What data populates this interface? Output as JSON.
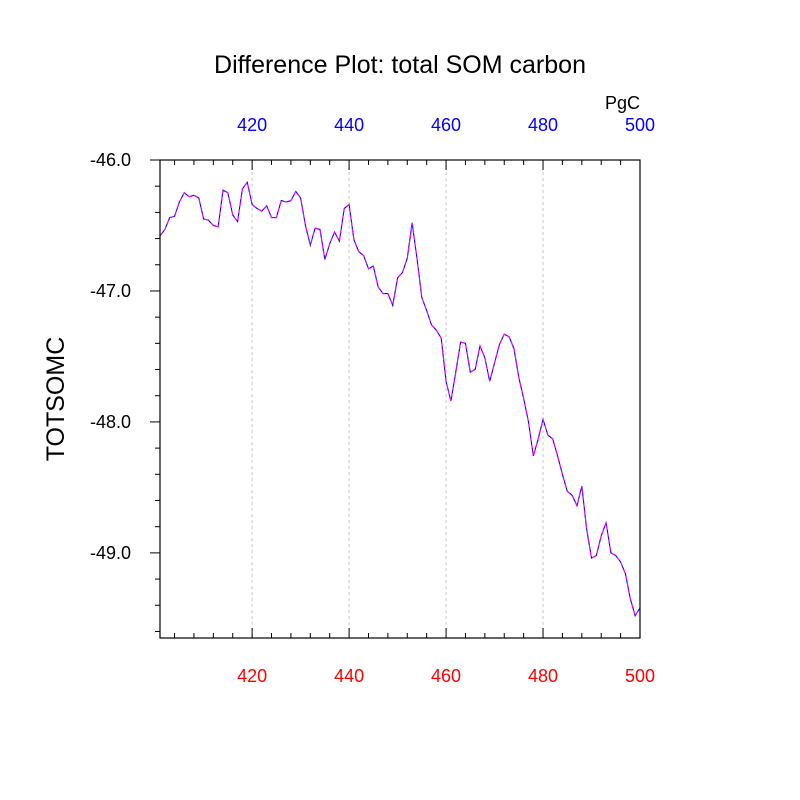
{
  "chart_data": {
    "type": "line",
    "title": "Difference Plot: total SOM carbon",
    "units": "PgC",
    "ylabel": "TOTSOMC",
    "xlabel": "",
    "xlim": [
      401,
      500
    ],
    "ylim": [
      -49.65,
      -46.0
    ],
    "x_ticks_bottom": [
      420,
      440,
      460,
      480,
      500
    ],
    "x_ticks_top": [
      420,
      440,
      460,
      480,
      500
    ],
    "y_ticks": [
      -46.0,
      -47.0,
      -48.0,
      -49.0
    ],
    "y_tick_labels": [
      "-46.0",
      "-47.0",
      "-48.0",
      "-49.0"
    ],
    "grid": "vertical dashed at major x ticks",
    "colors": {
      "bottom_axis_labels": "#ff0000",
      "top_axis_labels": "#0000ff",
      "series_a": "#0000ff",
      "series_b": "#ff00ff"
    },
    "series": [
      {
        "x": [
          401,
          402,
          403,
          404,
          405,
          406,
          407,
          408,
          409,
          410,
          411,
          412,
          413,
          414,
          415,
          416,
          417,
          418,
          419,
          420,
          421,
          422,
          423,
          424,
          425,
          426,
          427,
          428,
          429,
          430,
          431,
          432,
          433,
          434,
          435,
          436,
          437,
          438,
          439,
          440,
          441,
          442,
          443,
          444,
          445,
          446,
          447,
          448,
          449,
          450,
          451,
          452,
          453,
          454,
          455,
          456,
          457,
          458,
          459,
          460,
          461,
          462,
          463,
          464,
          465,
          466,
          467,
          468,
          469,
          470,
          471,
          472,
          473,
          474,
          475,
          476,
          477,
          478,
          479,
          480,
          481,
          482,
          483,
          484,
          485,
          486,
          487,
          488,
          489,
          490,
          491,
          492,
          493,
          494,
          495,
          496,
          497,
          498,
          499,
          500
        ],
        "values": [
          -46.58,
          -46.53,
          -46.44,
          -46.43,
          -46.32,
          -46.25,
          -46.28,
          -46.27,
          -46.29,
          -46.45,
          -46.46,
          -46.5,
          -46.51,
          -46.23,
          -46.25,
          -46.42,
          -46.47,
          -46.22,
          -46.17,
          -46.34,
          -46.37,
          -46.39,
          -46.35,
          -46.44,
          -46.44,
          -46.31,
          -46.32,
          -46.31,
          -46.24,
          -46.29,
          -46.5,
          -46.65,
          -46.52,
          -46.53,
          -46.76,
          -46.64,
          -46.55,
          -46.62,
          -46.37,
          -46.34,
          -46.61,
          -46.7,
          -46.73,
          -46.83,
          -46.81,
          -46.97,
          -47.02,
          -47.02,
          -47.11,
          -46.9,
          -46.86,
          -46.75,
          -46.48,
          -46.75,
          -47.05,
          -47.15,
          -47.26,
          -47.3,
          -47.36,
          -47.69,
          -47.84,
          -47.62,
          -47.39,
          -47.4,
          -47.62,
          -47.6,
          -47.42,
          -47.51,
          -47.69,
          -47.55,
          -47.41,
          -47.33,
          -47.35,
          -47.44,
          -47.66,
          -47.82,
          -48.0,
          -48.26,
          -48.13,
          -47.98,
          -48.1,
          -48.13,
          -48.26,
          -48.4,
          -48.53,
          -48.56,
          -48.64,
          -48.49,
          -48.82,
          -49.04,
          -49.02,
          -48.87,
          -48.77,
          -49.0,
          -49.02,
          -49.07,
          -49.16,
          -49.35,
          -49.48,
          -49.42
        ]
      }
    ]
  }
}
